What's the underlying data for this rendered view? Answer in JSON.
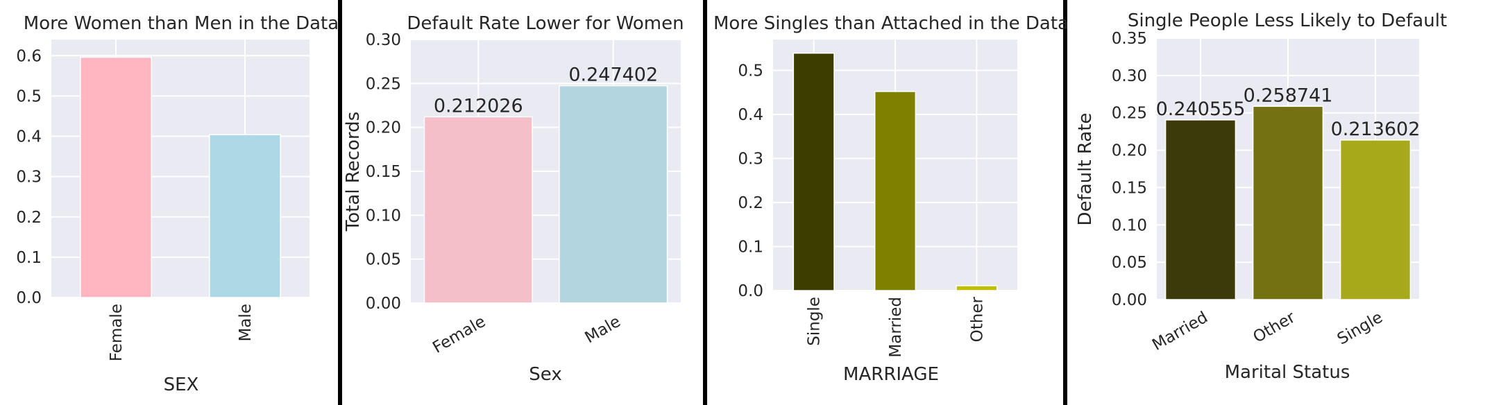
{
  "chart_data": [
    {
      "type": "bar",
      "title": "More Women than Men in the Data",
      "xlabel": "SEX",
      "ylabel": "",
      "categories": [
        "Female",
        "Male"
      ],
      "values": [
        0.596,
        0.404
      ],
      "colors": [
        "#ffb6c1",
        "#add8e6"
      ],
      "ylim": [
        0,
        0.64
      ],
      "yticks": [
        0.0,
        0.1,
        0.2,
        0.3,
        0.4,
        0.5,
        0.6
      ],
      "ytick_labels": [
        "0.0",
        "0.1",
        "0.2",
        "0.3",
        "0.4",
        "0.5",
        "0.6"
      ],
      "tick_rotation": "vertical",
      "grid": true,
      "data_labels": []
    },
    {
      "type": "bar",
      "title": "Default Rate Lower for Women",
      "xlabel": "Sex",
      "ylabel": "Total Records",
      "categories": [
        "Female",
        "Male"
      ],
      "values": [
        0.212026,
        0.247402
      ],
      "colors": [
        "#f5bfca",
        "#b2d5e0"
      ],
      "ylim": [
        0,
        0.3
      ],
      "yticks": [
        0.0,
        0.05,
        0.1,
        0.15,
        0.2,
        0.25,
        0.3
      ],
      "ytick_labels": [
        "0.00",
        "0.05",
        "0.10",
        "0.15",
        "0.20",
        "0.25",
        "0.30"
      ],
      "tick_rotation": "angled",
      "grid": true,
      "data_labels": [
        "0.212026",
        "0.247402"
      ]
    },
    {
      "type": "bar",
      "title": "More Singles than Attached in the Data",
      "xlabel": "MARRIAGE",
      "ylabel": "",
      "categories": [
        "Single",
        "Married",
        "Other"
      ],
      "values": [
        0.539,
        0.452,
        0.011
      ],
      "colors": [
        "#3d3d00",
        "#808000",
        "#bfbf00"
      ],
      "ylim": [
        0,
        0.57
      ],
      "yticks": [
        0.0,
        0.1,
        0.2,
        0.3,
        0.4,
        0.5
      ],
      "ytick_labels": [
        "0.0",
        "0.1",
        "0.2",
        "0.3",
        "0.4",
        "0.5"
      ],
      "tick_rotation": "vertical",
      "grid": true,
      "data_labels": []
    },
    {
      "type": "bar",
      "title": "Single People Less Likely to Default",
      "xlabel": "Marital Status",
      "ylabel": "Default Rate",
      "categories": [
        "Married",
        "Other",
        "Single"
      ],
      "values": [
        0.240555,
        0.258741,
        0.213602
      ],
      "colors": [
        "#3c3a0b",
        "#747112",
        "#a8a81b"
      ],
      "ylim": [
        0,
        0.35
      ],
      "yticks": [
        0.0,
        0.05,
        0.1,
        0.15,
        0.2,
        0.25,
        0.3,
        0.35
      ],
      "ytick_labels": [
        "0.00",
        "0.05",
        "0.10",
        "0.15",
        "0.20",
        "0.25",
        "0.30",
        "0.35"
      ],
      "tick_rotation": "angled",
      "grid": true,
      "data_labels": [
        "0.240555",
        "0.258741",
        "0.213602"
      ]
    }
  ]
}
